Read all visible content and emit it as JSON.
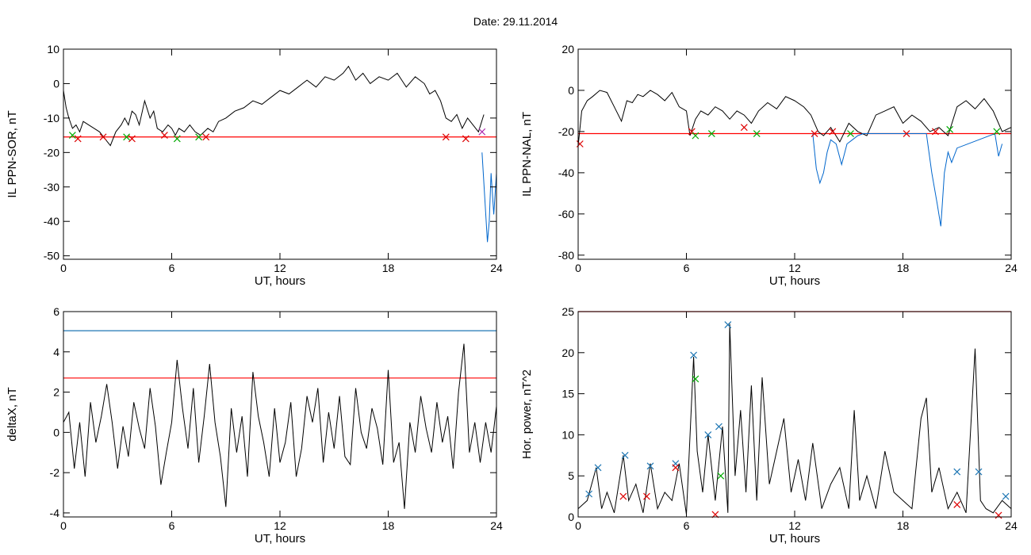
{
  "figure": {
    "title": "Date:  29.11.2014"
  },
  "chart_data": [
    {
      "id": "p1",
      "type": "line",
      "title": "",
      "xlabel": "UT, hours",
      "ylabel": "IL PPN-SOR, nT",
      "xlim": [
        0,
        24
      ],
      "ylim": [
        -51,
        10
      ],
      "xticks": [
        0,
        6,
        12,
        18,
        24
      ],
      "yticks": [
        10,
        0,
        -10,
        -20,
        -30,
        -40,
        -50
      ],
      "threshold": {
        "value": -15.5,
        "color": "#ff0000"
      },
      "series": [
        {
          "color": "#000000",
          "x": [
            0,
            0.15,
            0.3,
            0.5,
            0.7,
            0.9,
            1.1,
            1.4,
            1.7,
            2.0,
            2.3,
            2.6,
            2.9,
            3.2,
            3.4,
            3.6,
            3.8,
            4.0,
            4.2,
            4.5,
            4.8,
            5.0,
            5.2,
            5.5,
            5.8,
            6.0,
            6.2,
            6.4,
            6.7,
            7.0,
            7.3,
            7.6,
            8.0,
            8.3,
            8.6,
            9.0,
            9.5,
            10.0,
            10.5,
            11.0,
            11.5,
            12.0,
            12.5,
            13.0,
            13.5,
            14.0,
            14.5,
            15.0,
            15.5,
            15.8,
            16.2,
            16.6,
            17.0,
            17.5,
            18.0,
            18.5,
            19.0,
            19.5,
            20.0,
            20.3,
            20.6,
            20.9,
            21.2,
            21.5,
            21.8,
            22.1,
            22.4,
            22.7,
            23.0,
            23.3
          ],
          "y": [
            -2,
            -7,
            -10,
            -13,
            -12,
            -14,
            -11,
            -12,
            -13,
            -14,
            -16,
            -18,
            -14,
            -12,
            -10,
            -12,
            -8,
            -9,
            -12,
            -5,
            -10,
            -8,
            -13,
            -14,
            -12,
            -13,
            -15,
            -13,
            -14,
            -12,
            -14,
            -15,
            -13,
            -14,
            -11,
            -10,
            -8,
            -7,
            -5,
            -6,
            -4,
            -2,
            -3,
            -1,
            1,
            -1,
            2,
            1,
            3,
            5,
            1,
            3,
            0,
            2,
            1,
            3,
            -1,
            2,
            0,
            -3,
            -2,
            -5,
            -10,
            -11,
            -9,
            -13,
            -10,
            -12,
            -14,
            -9
          ]
        },
        {
          "color": "#0066cc",
          "x": [
            23.2,
            23.35,
            23.5,
            23.6,
            23.7,
            23.85,
            24.0
          ],
          "y": [
            -20,
            -33,
            -46,
            -40,
            -26,
            -38,
            -26
          ]
        }
      ]
    },
    {
      "id": "p2",
      "type": "line",
      "title": "",
      "xlabel": "UT, hours",
      "ylabel": "IL PPN-NAL, nT",
      "xlim": [
        0,
        24
      ],
      "ylim": [
        -82,
        20
      ],
      "xticks": [
        0,
        6,
        12,
        18,
        24
      ],
      "yticks": [
        20,
        0,
        -20,
        -40,
        -60,
        -80
      ],
      "threshold": {
        "value": -21,
        "color": "#ff0000"
      },
      "series": [
        {
          "color": "#000000",
          "x": [
            0,
            0.2,
            0.5,
            0.8,
            1.2,
            1.6,
            2.0,
            2.4,
            2.7,
            3.0,
            3.3,
            3.6,
            4.0,
            4.4,
            4.8,
            5.2,
            5.6,
            6.0,
            6.2,
            6.5,
            6.8,
            7.2,
            7.6,
            8.0,
            8.4,
            8.8,
            9.2,
            9.6,
            10.0,
            10.5,
            11.0,
            11.5,
            12.0,
            12.5,
            12.9,
            13.3,
            13.6,
            14.0,
            14.5,
            15.0,
            15.5,
            16.0,
            16.5,
            17.0,
            17.5,
            18.0,
            18.5,
            19.0,
            19.5,
            20.0,
            20.5,
            21.0,
            21.5,
            22.0,
            22.5,
            23.0,
            23.5,
            24.0
          ],
          "y": [
            -27,
            -10,
            -5,
            -3,
            0,
            -1,
            -8,
            -15,
            -5,
            -6,
            -2,
            -3,
            0,
            -2,
            -5,
            -1,
            -8,
            -10,
            -22,
            -14,
            -10,
            -12,
            -8,
            -10,
            -14,
            -10,
            -12,
            -16,
            -10,
            -6,
            -9,
            -3,
            -5,
            -8,
            -12,
            -20,
            -22,
            -18,
            -25,
            -16,
            -20,
            -22,
            -12,
            -10,
            -8,
            -16,
            -12,
            -15,
            -20,
            -18,
            -22,
            -8,
            -5,
            -9,
            -4,
            -10,
            -20,
            -18
          ]
        },
        {
          "color": "#0066cc",
          "x": [
            13.0,
            13.2,
            13.4,
            13.6,
            13.8,
            14.0,
            14.3,
            14.6,
            14.9,
            15.2,
            15.5,
            15.8,
            19.3,
            19.6,
            19.9,
            20.1,
            20.3,
            20.5,
            20.7,
            21.0,
            23.1,
            23.3,
            23.5
          ],
          "y": [
            -21,
            -38,
            -45,
            -40,
            -30,
            -24,
            -26,
            -36,
            -26,
            -24,
            -22,
            -21,
            -21,
            -40,
            -55,
            -66,
            -40,
            -30,
            -35,
            -28,
            -21,
            -32,
            -26
          ]
        }
      ]
    },
    {
      "id": "p3",
      "type": "line",
      "title": "",
      "xlabel": "UT, hours",
      "ylabel": "deltaX, nT",
      "xlim": [
        0,
        24
      ],
      "ylim": [
        -4.2,
        6
      ],
      "xticks": [
        0,
        6,
        12,
        18,
        24
      ],
      "yticks": [
        6,
        4,
        2,
        0,
        -2,
        -4
      ],
      "thresholds": [
        {
          "value": 5.05,
          "color": "#1f77b4"
        },
        {
          "value": 2.7,
          "color": "#ff0000"
        }
      ],
      "series": [
        {
          "color": "#000000",
          "x": [
            0,
            0.3,
            0.6,
            0.9,
            1.2,
            1.5,
            1.8,
            2.1,
            2.4,
            2.7,
            3.0,
            3.3,
            3.6,
            3.9,
            4.2,
            4.5,
            4.8,
            5.1,
            5.4,
            5.7,
            6.0,
            6.3,
            6.6,
            6.9,
            7.2,
            7.5,
            7.8,
            8.1,
            8.4,
            8.7,
            9.0,
            9.3,
            9.6,
            9.9,
            10.2,
            10.5,
            10.8,
            11.1,
            11.4,
            11.7,
            12.0,
            12.3,
            12.6,
            12.9,
            13.2,
            13.5,
            13.8,
            14.1,
            14.4,
            14.7,
            15.0,
            15.3,
            15.6,
            15.9,
            16.2,
            16.5,
            16.8,
            17.1,
            17.4,
            17.7,
            18.0,
            18.3,
            18.6,
            18.9,
            19.2,
            19.5,
            19.8,
            20.1,
            20.4,
            20.7,
            21.0,
            21.3,
            21.6,
            21.9,
            22.2,
            22.5,
            22.8,
            23.1,
            23.4,
            23.7,
            24.0
          ],
          "y": [
            0.5,
            1,
            -1.8,
            0.5,
            -2.2,
            1.5,
            -0.5,
            0.8,
            2.4,
            0.5,
            -1.8,
            0.3,
            -1.2,
            1.5,
            0.2,
            -0.8,
            2.2,
            0.3,
            -2.6,
            -1,
            0.5,
            3.6,
            1.2,
            -0.8,
            2.2,
            -1.5,
            0.8,
            3.4,
            0.5,
            -1.2,
            -3.7,
            1.2,
            -1,
            0.8,
            -2.2,
            3,
            0.8,
            -0.5,
            -2.2,
            1.2,
            -1.5,
            -0.5,
            1.5,
            -2.2,
            -0.8,
            1.8,
            0.5,
            2.2,
            -1.5,
            1,
            -0.8,
            1.8,
            -1.2,
            -1.6,
            2.2,
            0,
            -0.8,
            1.2,
            0.2,
            -1.6,
            3.1,
            -1.5,
            -0.5,
            -3.8,
            0.5,
            -1,
            1.8,
            0.2,
            -1,
            1.5,
            -0.5,
            0.8,
            -1.8,
            2,
            4.4,
            -1,
            0.5,
            -1.5,
            0.5,
            -1,
            1.3
          ]
        }
      ]
    },
    {
      "id": "p4",
      "type": "line",
      "title": "",
      "xlabel": "UT, hours",
      "ylabel": "Hor. power, nT^2",
      "xlim": [
        0,
        24
      ],
      "ylim": [
        0,
        25
      ],
      "xticks": [
        0,
        6,
        12,
        18,
        24
      ],
      "yticks": [
        25,
        20,
        15,
        10,
        5,
        0
      ],
      "threshold": {
        "value": 25,
        "color": "#ff0000"
      },
      "series": [
        {
          "color": "#000000",
          "x": [
            0,
            0.5,
            1.0,
            1.3,
            1.6,
            2.0,
            2.5,
            2.8,
            3.2,
            3.6,
            4.0,
            4.4,
            4.8,
            5.2,
            5.6,
            6.0,
            6.4,
            6.6,
            6.9,
            7.2,
            7.6,
            8.0,
            8.3,
            8.4,
            8.7,
            9.0,
            9.3,
            9.6,
            9.9,
            10.2,
            10.6,
            11.0,
            11.4,
            11.8,
            12.2,
            12.6,
            13.0,
            13.5,
            14.0,
            14.5,
            15.0,
            15.3,
            15.6,
            16.0,
            16.5,
            17.0,
            17.5,
            18.0,
            18.5,
            19.0,
            19.3,
            19.6,
            20.0,
            20.5,
            21.0,
            21.5,
            22.0,
            22.3,
            22.6,
            23.0,
            23.5,
            24.0
          ],
          "y": [
            1,
            2,
            6,
            1,
            3,
            0.5,
            7.5,
            2,
            4,
            0.5,
            6.5,
            1,
            3,
            2,
            6.5,
            0.3,
            19.5,
            8,
            3,
            10,
            2,
            11,
            0.5,
            23.5,
            5,
            13,
            3,
            16,
            2,
            17,
            4,
            8,
            12,
            3,
            7,
            2,
            9,
            1,
            4,
            6,
            1,
            13,
            2,
            5,
            1,
            8,
            3,
            2,
            1,
            12,
            14.5,
            3,
            6,
            1,
            3,
            0.5,
            20.5,
            2,
            1,
            0.5,
            2,
            1
          ]
        }
      ]
    }
  ],
  "markers": {
    "p1": [
      {
        "x": 0.5,
        "y": -15,
        "c": "#00aa00"
      },
      {
        "x": 0.8,
        "y": -16,
        "c": "#dd0000"
      },
      {
        "x": 2.2,
        "y": -15.5,
        "c": "#dd0000"
      },
      {
        "x": 3.5,
        "y": -15.5,
        "c": "#00aa00"
      },
      {
        "x": 3.8,
        "y": -16,
        "c": "#dd0000"
      },
      {
        "x": 5.6,
        "y": -15,
        "c": "#dd0000"
      },
      {
        "x": 6.3,
        "y": -16,
        "c": "#00aa00"
      },
      {
        "x": 7.5,
        "y": -15.5,
        "c": "#00aa00"
      },
      {
        "x": 7.9,
        "y": -15.5,
        "c": "#dd0000"
      },
      {
        "x": 21.2,
        "y": -15.5,
        "c": "#dd0000"
      },
      {
        "x": 22.3,
        "y": -16,
        "c": "#dd0000"
      },
      {
        "x": 23.2,
        "y": -14,
        "c": "#aa22aa"
      }
    ],
    "p2": [
      {
        "x": 0.1,
        "y": -26,
        "c": "#dd0000"
      },
      {
        "x": 6.3,
        "y": -20,
        "c": "#dd0000"
      },
      {
        "x": 6.5,
        "y": -22,
        "c": "#00aa00"
      },
      {
        "x": 7.4,
        "y": -21,
        "c": "#00aa00"
      },
      {
        "x": 9.2,
        "y": -18,
        "c": "#dd0000"
      },
      {
        "x": 9.9,
        "y": -21,
        "c": "#00aa00"
      },
      {
        "x": 13.1,
        "y": -21,
        "c": "#dd0000"
      },
      {
        "x": 14.1,
        "y": -20,
        "c": "#dd0000"
      },
      {
        "x": 15.1,
        "y": -21,
        "c": "#00aa00"
      },
      {
        "x": 18.2,
        "y": -21,
        "c": "#dd0000"
      },
      {
        "x": 19.8,
        "y": -20,
        "c": "#dd0000"
      },
      {
        "x": 20.6,
        "y": -19,
        "c": "#00aa00"
      },
      {
        "x": 23.2,
        "y": -20,
        "c": "#00aa00"
      }
    ],
    "p4": [
      {
        "x": 0.6,
        "y": 2.8,
        "c": "#1f77b4"
      },
      {
        "x": 1.1,
        "y": 6,
        "c": "#1f77b4"
      },
      {
        "x": 2.6,
        "y": 7.5,
        "c": "#1f77b4"
      },
      {
        "x": 4.0,
        "y": 6.2,
        "c": "#1f77b4"
      },
      {
        "x": 5.4,
        "y": 6.5,
        "c": "#1f77b4"
      },
      {
        "x": 6.4,
        "y": 19.7,
        "c": "#1f77b4"
      },
      {
        "x": 6.5,
        "y": 16.8,
        "c": "#00aa00"
      },
      {
        "x": 7.2,
        "y": 10,
        "c": "#1f77b4"
      },
      {
        "x": 7.8,
        "y": 11,
        "c": "#1f77b4"
      },
      {
        "x": 8.3,
        "y": 23.4,
        "c": "#1f77b4"
      },
      {
        "x": 7.9,
        "y": 5,
        "c": "#00aa00"
      },
      {
        "x": 7.6,
        "y": 0.3,
        "c": "#dd0000"
      },
      {
        "x": 2.5,
        "y": 2.5,
        "c": "#dd0000"
      },
      {
        "x": 3.8,
        "y": 2.5,
        "c": "#dd0000"
      },
      {
        "x": 5.4,
        "y": 6,
        "c": "#dd0000"
      },
      {
        "x": 21.0,
        "y": 5.5,
        "c": "#1f77b4"
      },
      {
        "x": 22.2,
        "y": 5.5,
        "c": "#1f77b4"
      },
      {
        "x": 23.7,
        "y": 2.5,
        "c": "#1f77b4"
      },
      {
        "x": 21.0,
        "y": 1.5,
        "c": "#dd0000"
      },
      {
        "x": 23.3,
        "y": 0.2,
        "c": "#dd0000"
      }
    ]
  }
}
